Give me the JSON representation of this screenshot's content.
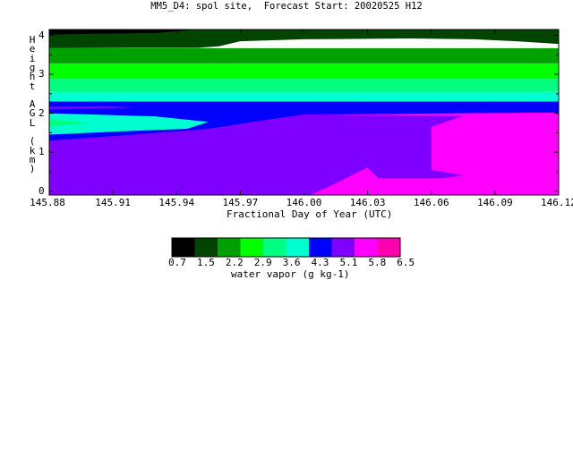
{
  "title": "MM5_D4: spol site,  Forecast Start: 20020525 H12",
  "chart_data": {
    "type": "heatmap",
    "xlabel": "Fractional Day of Year (UTC)",
    "ylabel": "Height AGL (km)",
    "x_ticks": [
      "145.88",
      "145.91",
      "145.94",
      "145.97",
      "146.00",
      "146.03",
      "146.06",
      "146.09",
      "146.12"
    ],
    "y_ticks": [
      "0",
      "1",
      "2",
      "3",
      "4"
    ],
    "xlim": [
      145.88,
      146.12
    ],
    "ylim": [
      -0.1,
      4.15
    ],
    "colorbar": {
      "label": "water vapor (g kg-1)",
      "ticks": [
        "0.7",
        "1.5",
        "2.2",
        "2.9",
        "3.6",
        "4.3",
        "5.1",
        "5.8",
        "6.5"
      ],
      "colors": [
        "#000000",
        "#004400",
        "#00a000",
        "#00ff00",
        "#00ff80",
        "#00ffd0",
        "#0000ff",
        "#8000ff",
        "#ff00ff",
        "#ff00b0"
      ]
    },
    "regions": [
      {
        "level": 0,
        "color": "#8000ff",
        "points": [
          [
            145.88,
            -0.1
          ],
          [
            146.12,
            -0.1
          ],
          [
            146.12,
            2.05
          ],
          [
            145.88,
            2.05
          ]
        ]
      },
      {
        "level": 1,
        "color": "#ff00ff",
        "points": [
          [
            145.998,
            -0.1
          ],
          [
            146.12,
            -0.1
          ],
          [
            146.12,
            2.02
          ],
          [
            146.03,
            1.98
          ],
          [
            146.01,
            1.98
          ],
          [
            146.01,
            1.97
          ],
          [
            146.075,
            1.93
          ],
          [
            146.06,
            1.65
          ],
          [
            146.06,
            0.55
          ],
          [
            146.075,
            0.4
          ],
          [
            146.065,
            0.33
          ],
          [
            146.035,
            0.33
          ],
          [
            146.03,
            0.6
          ],
          [
            146.026,
            0.5
          ],
          [
            146.015,
            0.2
          ],
          [
            146.003,
            -0.1
          ]
        ]
      },
      {
        "level": 2,
        "color": "#0000ff",
        "points": [
          [
            145.88,
            1.3
          ],
          [
            145.92,
            1.45
          ],
          [
            145.955,
            1.6
          ],
          [
            145.985,
            1.85
          ],
          [
            146.0,
            1.97
          ],
          [
            146.03,
            1.98
          ],
          [
            146.12,
            2.02
          ],
          [
            146.12,
            2.3
          ],
          [
            145.88,
            2.3
          ]
        ]
      },
      {
        "level": 3,
        "color": "#00ffd0",
        "points": [
          [
            145.88,
            1.45
          ],
          [
            145.92,
            1.55
          ],
          [
            145.945,
            1.6
          ],
          [
            145.955,
            1.78
          ],
          [
            145.93,
            1.92
          ],
          [
            145.88,
            2.0
          ]
        ]
      },
      {
        "level": 4,
        "color": "#00ff80",
        "points": [
          [
            145.88,
            1.65
          ],
          [
            145.9,
            1.75
          ],
          [
            145.88,
            1.85
          ]
        ]
      },
      {
        "level": 5,
        "color": "#8000ff",
        "points": [
          [
            145.88,
            2.1
          ],
          [
            145.9,
            2.12
          ],
          [
            145.92,
            2.15
          ],
          [
            145.91,
            2.18
          ],
          [
            145.88,
            2.17
          ]
        ]
      },
      {
        "level": 6,
        "color": "#0000ff",
        "points": [
          [
            145.88,
            2.2
          ],
          [
            145.92,
            2.2
          ],
          [
            145.93,
            2.25
          ],
          [
            145.88,
            2.28
          ]
        ]
      },
      {
        "level": 7,
        "color": "#00ffd0",
        "points": [
          [
            145.88,
            2.3
          ],
          [
            146.12,
            2.3
          ],
          [
            146.12,
            2.55
          ],
          [
            145.88,
            2.55
          ]
        ]
      },
      {
        "level": 8,
        "color": "#00ff80",
        "points": [
          [
            145.88,
            2.55
          ],
          [
            146.12,
            2.55
          ],
          [
            146.12,
            2.88
          ],
          [
            145.88,
            2.88
          ]
        ]
      },
      {
        "level": 9,
        "color": "#00ff00",
        "points": [
          [
            145.88,
            2.88
          ],
          [
            146.12,
            2.88
          ],
          [
            146.12,
            3.28
          ],
          [
            145.88,
            3.28
          ]
        ]
      },
      {
        "level": 10,
        "color": "#00a000",
        "points": [
          [
            145.88,
            3.28
          ],
          [
            146.12,
            3.28
          ],
          [
            146.12,
            3.67
          ],
          [
            145.88,
            3.67
          ]
        ]
      },
      {
        "level": 11,
        "color": "#004400",
        "points": [
          [
            145.88,
            3.67
          ],
          [
            145.92,
            3.68
          ],
          [
            145.95,
            3.68
          ],
          [
            145.96,
            3.72
          ],
          [
            145.97,
            3.85
          ],
          [
            146.0,
            3.9
          ],
          [
            146.05,
            3.92
          ],
          [
            146.08,
            3.9
          ],
          [
            146.1,
            3.85
          ],
          [
            146.12,
            3.78
          ],
          [
            146.12,
            4.15
          ],
          [
            145.88,
            4.15
          ]
        ]
      },
      {
        "level": 12,
        "color": "#000000",
        "points": [
          [
            145.88,
            4.02
          ],
          [
            145.9,
            4.04
          ],
          [
            145.93,
            4.06
          ],
          [
            145.95,
            4.15
          ],
          [
            145.88,
            4.15
          ]
        ]
      }
    ]
  }
}
